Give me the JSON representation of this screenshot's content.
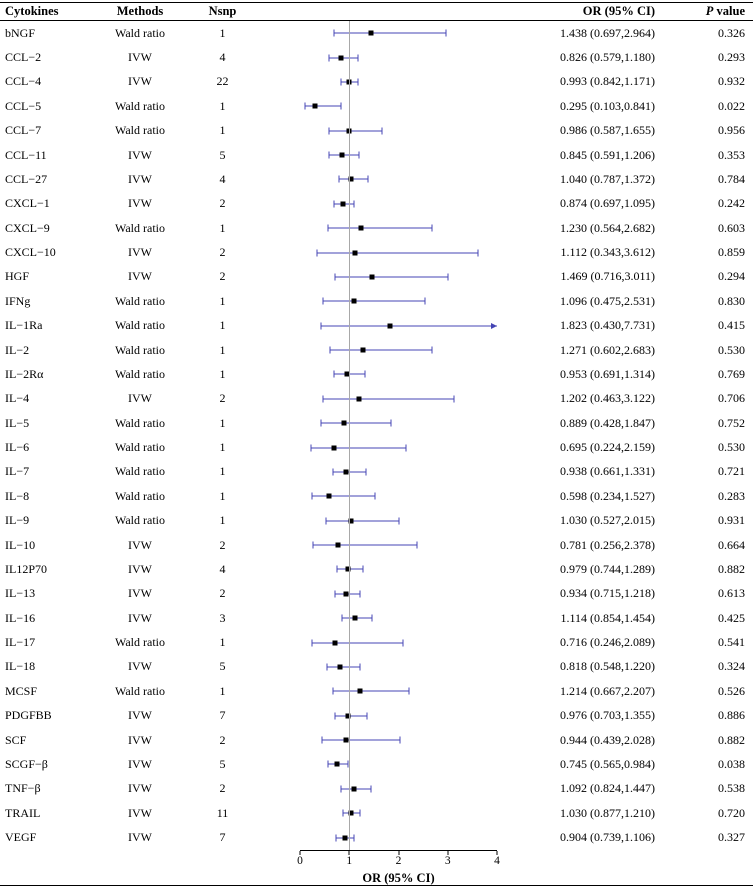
{
  "colors": {
    "ci": "#4444b4",
    "marker": "#000000",
    "ref": "#a8a8a8",
    "rule": "#000000"
  },
  "header": {
    "p_italic": "P",
    "p_rest": "value"
  },
  "chart_data": {
    "type": "forest",
    "columns": [
      "Cytokines",
      "Methods",
      "Nsnp",
      "OR (95% CI)",
      "P value"
    ],
    "xlabel": "OR (95% CI)",
    "xlim": [
      0,
      4
    ],
    "ticks": [
      0,
      1,
      2,
      3,
      4
    ],
    "refline": 1,
    "rows": [
      {
        "label": "bNGF",
        "method": "Wald ratio",
        "nsnp": "1",
        "or": 1.438,
        "lo": 0.697,
        "hi": 2.964,
        "or_text": "1.438 (0.697,2.964)",
        "p": "0.326"
      },
      {
        "label": "CCL−2",
        "method": "IVW",
        "nsnp": "4",
        "or": 0.826,
        "lo": 0.579,
        "hi": 1.18,
        "or_text": "0.826 (0.579,1.180)",
        "p": "0.293"
      },
      {
        "label": "CCL−4",
        "method": "IVW",
        "nsnp": "22",
        "or": 0.993,
        "lo": 0.842,
        "hi": 1.171,
        "or_text": "0.993 (0.842,1.171)",
        "p": "0.932"
      },
      {
        "label": "CCL−5",
        "method": "Wald ratio",
        "nsnp": "1",
        "or": 0.295,
        "lo": 0.103,
        "hi": 0.841,
        "or_text": "0.295 (0.103,0.841)",
        "p": "0.022"
      },
      {
        "label": "CCL−7",
        "method": "Wald ratio",
        "nsnp": "1",
        "or": 0.986,
        "lo": 0.587,
        "hi": 1.655,
        "or_text": "0.986 (0.587,1.655)",
        "p": "0.956"
      },
      {
        "label": "CCL−11",
        "method": "IVW",
        "nsnp": "5",
        "or": 0.845,
        "lo": 0.591,
        "hi": 1.206,
        "or_text": "0.845 (0.591,1.206)",
        "p": "0.353"
      },
      {
        "label": "CCL−27",
        "method": "IVW",
        "nsnp": "4",
        "or": 1.04,
        "lo": 0.787,
        "hi": 1.372,
        "or_text": "1.040 (0.787,1.372)",
        "p": "0.784"
      },
      {
        "label": "CXCL−1",
        "method": "IVW",
        "nsnp": "2",
        "or": 0.874,
        "lo": 0.697,
        "hi": 1.095,
        "or_text": "0.874 (0.697,1.095)",
        "p": "0.242"
      },
      {
        "label": "CXCL−9",
        "method": "Wald ratio",
        "nsnp": "1",
        "or": 1.23,
        "lo": 0.564,
        "hi": 2.682,
        "or_text": "1.230 (0.564,2.682)",
        "p": "0.603"
      },
      {
        "label": "CXCL−10",
        "method": "IVW",
        "nsnp": "2",
        "or": 1.112,
        "lo": 0.343,
        "hi": 3.612,
        "or_text": "1.112 (0.343,3.612)",
        "p": "0.859"
      },
      {
        "label": "HGF",
        "method": "IVW",
        "nsnp": "2",
        "or": 1.469,
        "lo": 0.716,
        "hi": 3.011,
        "or_text": "1.469 (0.716,3.011)",
        "p": "0.294"
      },
      {
        "label": "IFNg",
        "method": "Wald ratio",
        "nsnp": "1",
        "or": 1.096,
        "lo": 0.475,
        "hi": 2.531,
        "or_text": "1.096 (0.475,2.531)",
        "p": "0.830"
      },
      {
        "label": "IL−1Ra",
        "method": "Wald ratio",
        "nsnp": "1",
        "or": 1.823,
        "lo": 0.43,
        "hi": 7.731,
        "or_text": "1.823 (0.430,7.731)",
        "p": "0.415"
      },
      {
        "label": "IL−2",
        "method": "Wald ratio",
        "nsnp": "1",
        "or": 1.271,
        "lo": 0.602,
        "hi": 2.683,
        "or_text": "1.271 (0.602,2.683)",
        "p": "0.530"
      },
      {
        "label": "IL−2Rα",
        "method": "Wald ratio",
        "nsnp": "1",
        "or": 0.953,
        "lo": 0.691,
        "hi": 1.314,
        "or_text": "0.953 (0.691,1.314)",
        "p": "0.769"
      },
      {
        "label": "IL−4",
        "method": "IVW",
        "nsnp": "2",
        "or": 1.202,
        "lo": 0.463,
        "hi": 3.122,
        "or_text": "1.202 (0.463,3.122)",
        "p": "0.706"
      },
      {
        "label": "IL−5",
        "method": "Wald ratio",
        "nsnp": "1",
        "or": 0.889,
        "lo": 0.428,
        "hi": 1.847,
        "or_text": "0.889 (0.428,1.847)",
        "p": "0.752"
      },
      {
        "label": "IL−6",
        "method": "Wald ratio",
        "nsnp": "1",
        "or": 0.695,
        "lo": 0.224,
        "hi": 2.159,
        "or_text": "0.695 (0.224,2.159)",
        "p": "0.530"
      },
      {
        "label": "IL−7",
        "method": "Wald ratio",
        "nsnp": "1",
        "or": 0.938,
        "lo": 0.661,
        "hi": 1.331,
        "or_text": "0.938 (0.661,1.331)",
        "p": "0.721"
      },
      {
        "label": "IL−8",
        "method": "Wald ratio",
        "nsnp": "1",
        "or": 0.598,
        "lo": 0.234,
        "hi": 1.527,
        "or_text": "0.598 (0.234,1.527)",
        "p": "0.283"
      },
      {
        "label": "IL−9",
        "method": "Wald ratio",
        "nsnp": "1",
        "or": 1.03,
        "lo": 0.527,
        "hi": 2.015,
        "or_text": "1.030 (0.527,2.015)",
        "p": "0.931"
      },
      {
        "label": "IL−10",
        "method": "IVW",
        "nsnp": "2",
        "or": 0.781,
        "lo": 0.256,
        "hi": 2.378,
        "or_text": "0.781 (0.256,2.378)",
        "p": "0.664"
      },
      {
        "label": "IL12P70",
        "method": "IVW",
        "nsnp": "4",
        "or": 0.979,
        "lo": 0.744,
        "hi": 1.289,
        "or_text": "0.979 (0.744,1.289)",
        "p": "0.882"
      },
      {
        "label": "IL−13",
        "method": "IVW",
        "nsnp": "2",
        "or": 0.934,
        "lo": 0.715,
        "hi": 1.218,
        "or_text": "0.934 (0.715,1.218)",
        "p": "0.613"
      },
      {
        "label": "IL−16",
        "method": "IVW",
        "nsnp": "3",
        "or": 1.114,
        "lo": 0.854,
        "hi": 1.454,
        "or_text": "1.114 (0.854,1.454)",
        "p": "0.425"
      },
      {
        "label": "IL−17",
        "method": "Wald ratio",
        "nsnp": "1",
        "or": 0.716,
        "lo": 0.246,
        "hi": 2.089,
        "or_text": "0.716 (0.246,2.089)",
        "p": "0.541"
      },
      {
        "label": "IL−18",
        "method": "IVW",
        "nsnp": "5",
        "or": 0.818,
        "lo": 0.548,
        "hi": 1.22,
        "or_text": "0.818 (0.548,1.220)",
        "p": "0.324"
      },
      {
        "label": "MCSF",
        "method": "Wald ratio",
        "nsnp": "1",
        "or": 1.214,
        "lo": 0.667,
        "hi": 2.207,
        "or_text": "1.214 (0.667,2.207)",
        "p": "0.526"
      },
      {
        "label": "PDGFBB",
        "method": "IVW",
        "nsnp": "7",
        "or": 0.976,
        "lo": 0.703,
        "hi": 1.355,
        "or_text": "0.976 (0.703,1.355)",
        "p": "0.886"
      },
      {
        "label": "SCF",
        "method": "IVW",
        "nsnp": "2",
        "or": 0.944,
        "lo": 0.439,
        "hi": 2.028,
        "or_text": "0.944 (0.439,2.028)",
        "p": "0.882"
      },
      {
        "label": "SCGF−β",
        "method": "IVW",
        "nsnp": "5",
        "or": 0.745,
        "lo": 0.565,
        "hi": 0.984,
        "or_text": "0.745 (0.565,0.984)",
        "p": "0.038"
      },
      {
        "label": "TNF−β",
        "method": "IVW",
        "nsnp": "2",
        "or": 1.092,
        "lo": 0.824,
        "hi": 1.447,
        "or_text": "1.092 (0.824,1.447)",
        "p": "0.538"
      },
      {
        "label": "TRAIL",
        "method": "IVW",
        "nsnp": "11",
        "or": 1.03,
        "lo": 0.877,
        "hi": 1.21,
        "or_text": "1.030 (0.877,1.210)",
        "p": "0.720"
      },
      {
        "label": "VEGF",
        "method": "IVW",
        "nsnp": "7",
        "or": 0.904,
        "lo": 0.739,
        "hi": 1.106,
        "or_text": "0.904 (0.739,1.106)",
        "p": "0.327"
      }
    ]
  }
}
